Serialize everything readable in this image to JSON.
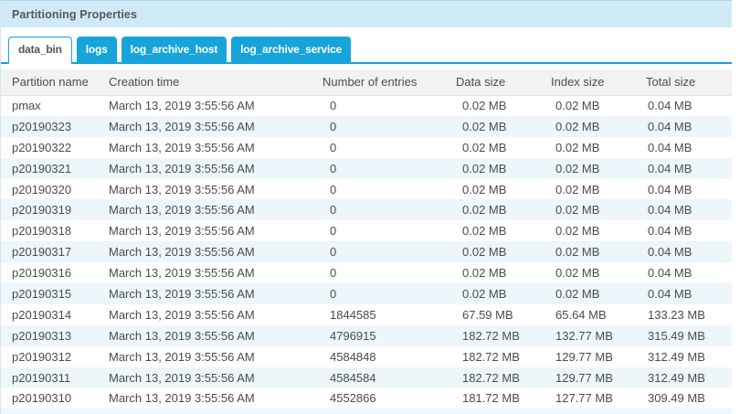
{
  "panel": {
    "title": "Partitioning Properties"
  },
  "tabs": [
    {
      "label": "data_bin",
      "active": true
    },
    {
      "label": "logs",
      "active": false
    },
    {
      "label": "log_archive_host",
      "active": false
    },
    {
      "label": "log_archive_service",
      "active": false
    }
  ],
  "table": {
    "columns": [
      "Partition name",
      "Creation time",
      "Number of entries",
      "Data size",
      "Index size",
      "Total size"
    ],
    "rows": [
      {
        "partition": "pmax",
        "creation_time": "March 13, 2019 3:55:56 AM",
        "entries": "0",
        "data_size": "0.02 MB",
        "index_size": "0.02 MB",
        "total_size": "0.04 MB"
      },
      {
        "partition": "p20190323",
        "creation_time": "March 13, 2019 3:55:56 AM",
        "entries": "0",
        "data_size": "0.02 MB",
        "index_size": "0.02 MB",
        "total_size": "0.04 MB"
      },
      {
        "partition": "p20190322",
        "creation_time": "March 13, 2019 3:55:56 AM",
        "entries": "0",
        "data_size": "0.02 MB",
        "index_size": "0.02 MB",
        "total_size": "0.04 MB"
      },
      {
        "partition": "p20190321",
        "creation_time": "March 13, 2019 3:55:56 AM",
        "entries": "0",
        "data_size": "0.02 MB",
        "index_size": "0.02 MB",
        "total_size": "0.04 MB"
      },
      {
        "partition": "p20190320",
        "creation_time": "March 13, 2019 3:55:56 AM",
        "entries": "0",
        "data_size": "0.02 MB",
        "index_size": "0.02 MB",
        "total_size": "0.04 MB"
      },
      {
        "partition": "p20190319",
        "creation_time": "March 13, 2019 3:55:56 AM",
        "entries": "0",
        "data_size": "0.02 MB",
        "index_size": "0.02 MB",
        "total_size": "0.04 MB"
      },
      {
        "partition": "p20190318",
        "creation_time": "March 13, 2019 3:55:56 AM",
        "entries": "0",
        "data_size": "0.02 MB",
        "index_size": "0.02 MB",
        "total_size": "0.04 MB"
      },
      {
        "partition": "p20190317",
        "creation_time": "March 13, 2019 3:55:56 AM",
        "entries": "0",
        "data_size": "0.02 MB",
        "index_size": "0.02 MB",
        "total_size": "0.04 MB"
      },
      {
        "partition": "p20190316",
        "creation_time": "March 13, 2019 3:55:56 AM",
        "entries": "0",
        "data_size": "0.02 MB",
        "index_size": "0.02 MB",
        "total_size": "0.04 MB"
      },
      {
        "partition": "p20190315",
        "creation_time": "March 13, 2019 3:55:56 AM",
        "entries": "0",
        "data_size": "0.02 MB",
        "index_size": "0.02 MB",
        "total_size": "0.04 MB"
      },
      {
        "partition": "p20190314",
        "creation_time": "March 13, 2019 3:55:56 AM",
        "entries": "1844585",
        "data_size": "67.59 MB",
        "index_size": "65.64 MB",
        "total_size": "133.23 MB"
      },
      {
        "partition": "p20190313",
        "creation_time": "March 13, 2019 3:55:56 AM",
        "entries": "4796915",
        "data_size": "182.72 MB",
        "index_size": "132.77 MB",
        "total_size": "315.49 MB"
      },
      {
        "partition": "p20190312",
        "creation_time": "March 13, 2019 3:55:56 AM",
        "entries": "4584848",
        "data_size": "182.72 MB",
        "index_size": "129.77 MB",
        "total_size": "312.49 MB"
      },
      {
        "partition": "p20190311",
        "creation_time": "March 13, 2019 3:55:56 AM",
        "entries": "4584584",
        "data_size": "182.72 MB",
        "index_size": "129.77 MB",
        "total_size": "312.49 MB"
      },
      {
        "partition": "p20190310",
        "creation_time": "March 13, 2019 3:55:56 AM",
        "entries": "4552866",
        "data_size": "181.72 MB",
        "index_size": "127.77 MB",
        "total_size": "309.49 MB"
      }
    ]
  },
  "colors": {
    "accent_blue": "#16a4da",
    "title_bar_bg": "#cfeaf6",
    "row_stripe": "#ecf6fb",
    "header_bg": "#f2f2f2",
    "text": "#4c4c4c"
  }
}
